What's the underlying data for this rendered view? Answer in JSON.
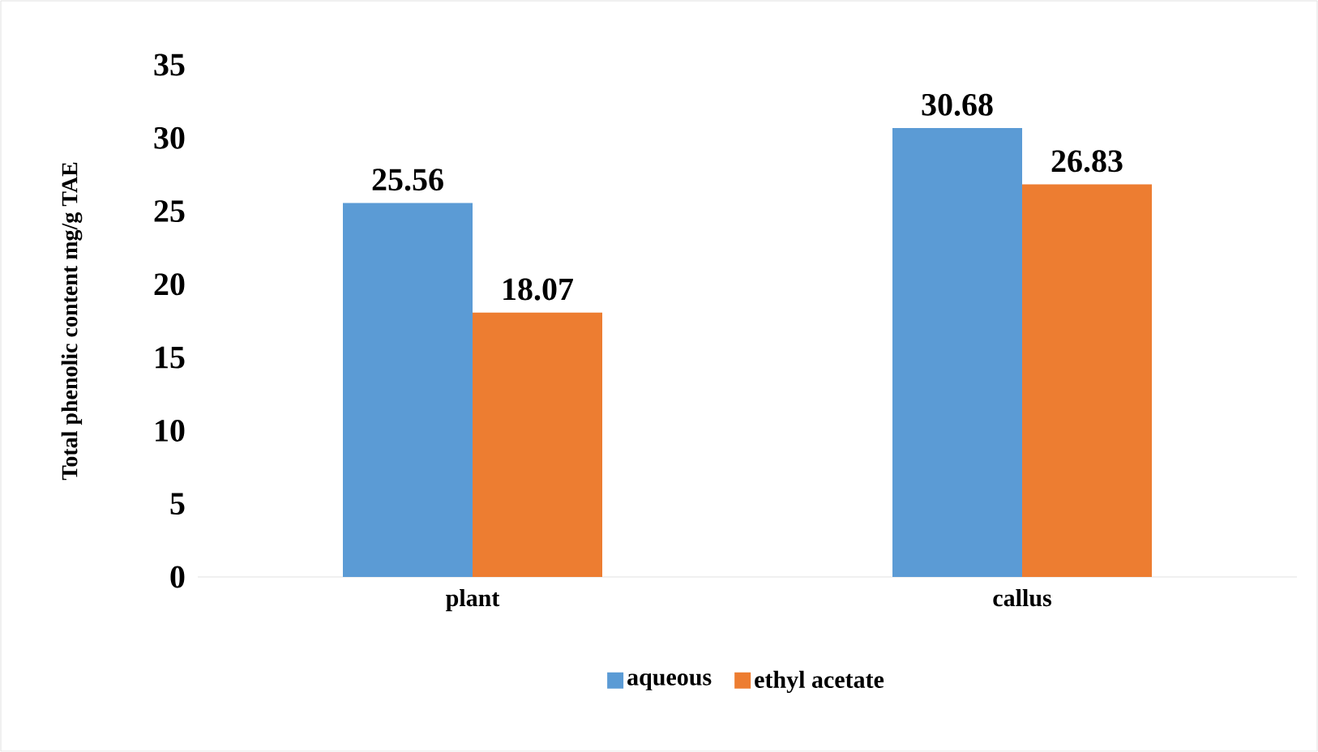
{
  "chart_data": {
    "type": "bar",
    "ylabel": "Total phenolic content mg/g TAE",
    "categories": [
      "plant",
      "callus"
    ],
    "series": [
      {
        "name": "aqueous",
        "color": "#5b9bd5",
        "values": [
          25.56,
          30.68
        ]
      },
      {
        "name": "ethyl acetate",
        "color": "#ed7d31",
        "values": [
          18.07,
          26.83
        ]
      }
    ],
    "ylim": [
      0,
      35
    ],
    "yticks": [
      0,
      5,
      10,
      15,
      20,
      25,
      30,
      35
    ],
    "data_labels": true,
    "legend": "bottom"
  }
}
